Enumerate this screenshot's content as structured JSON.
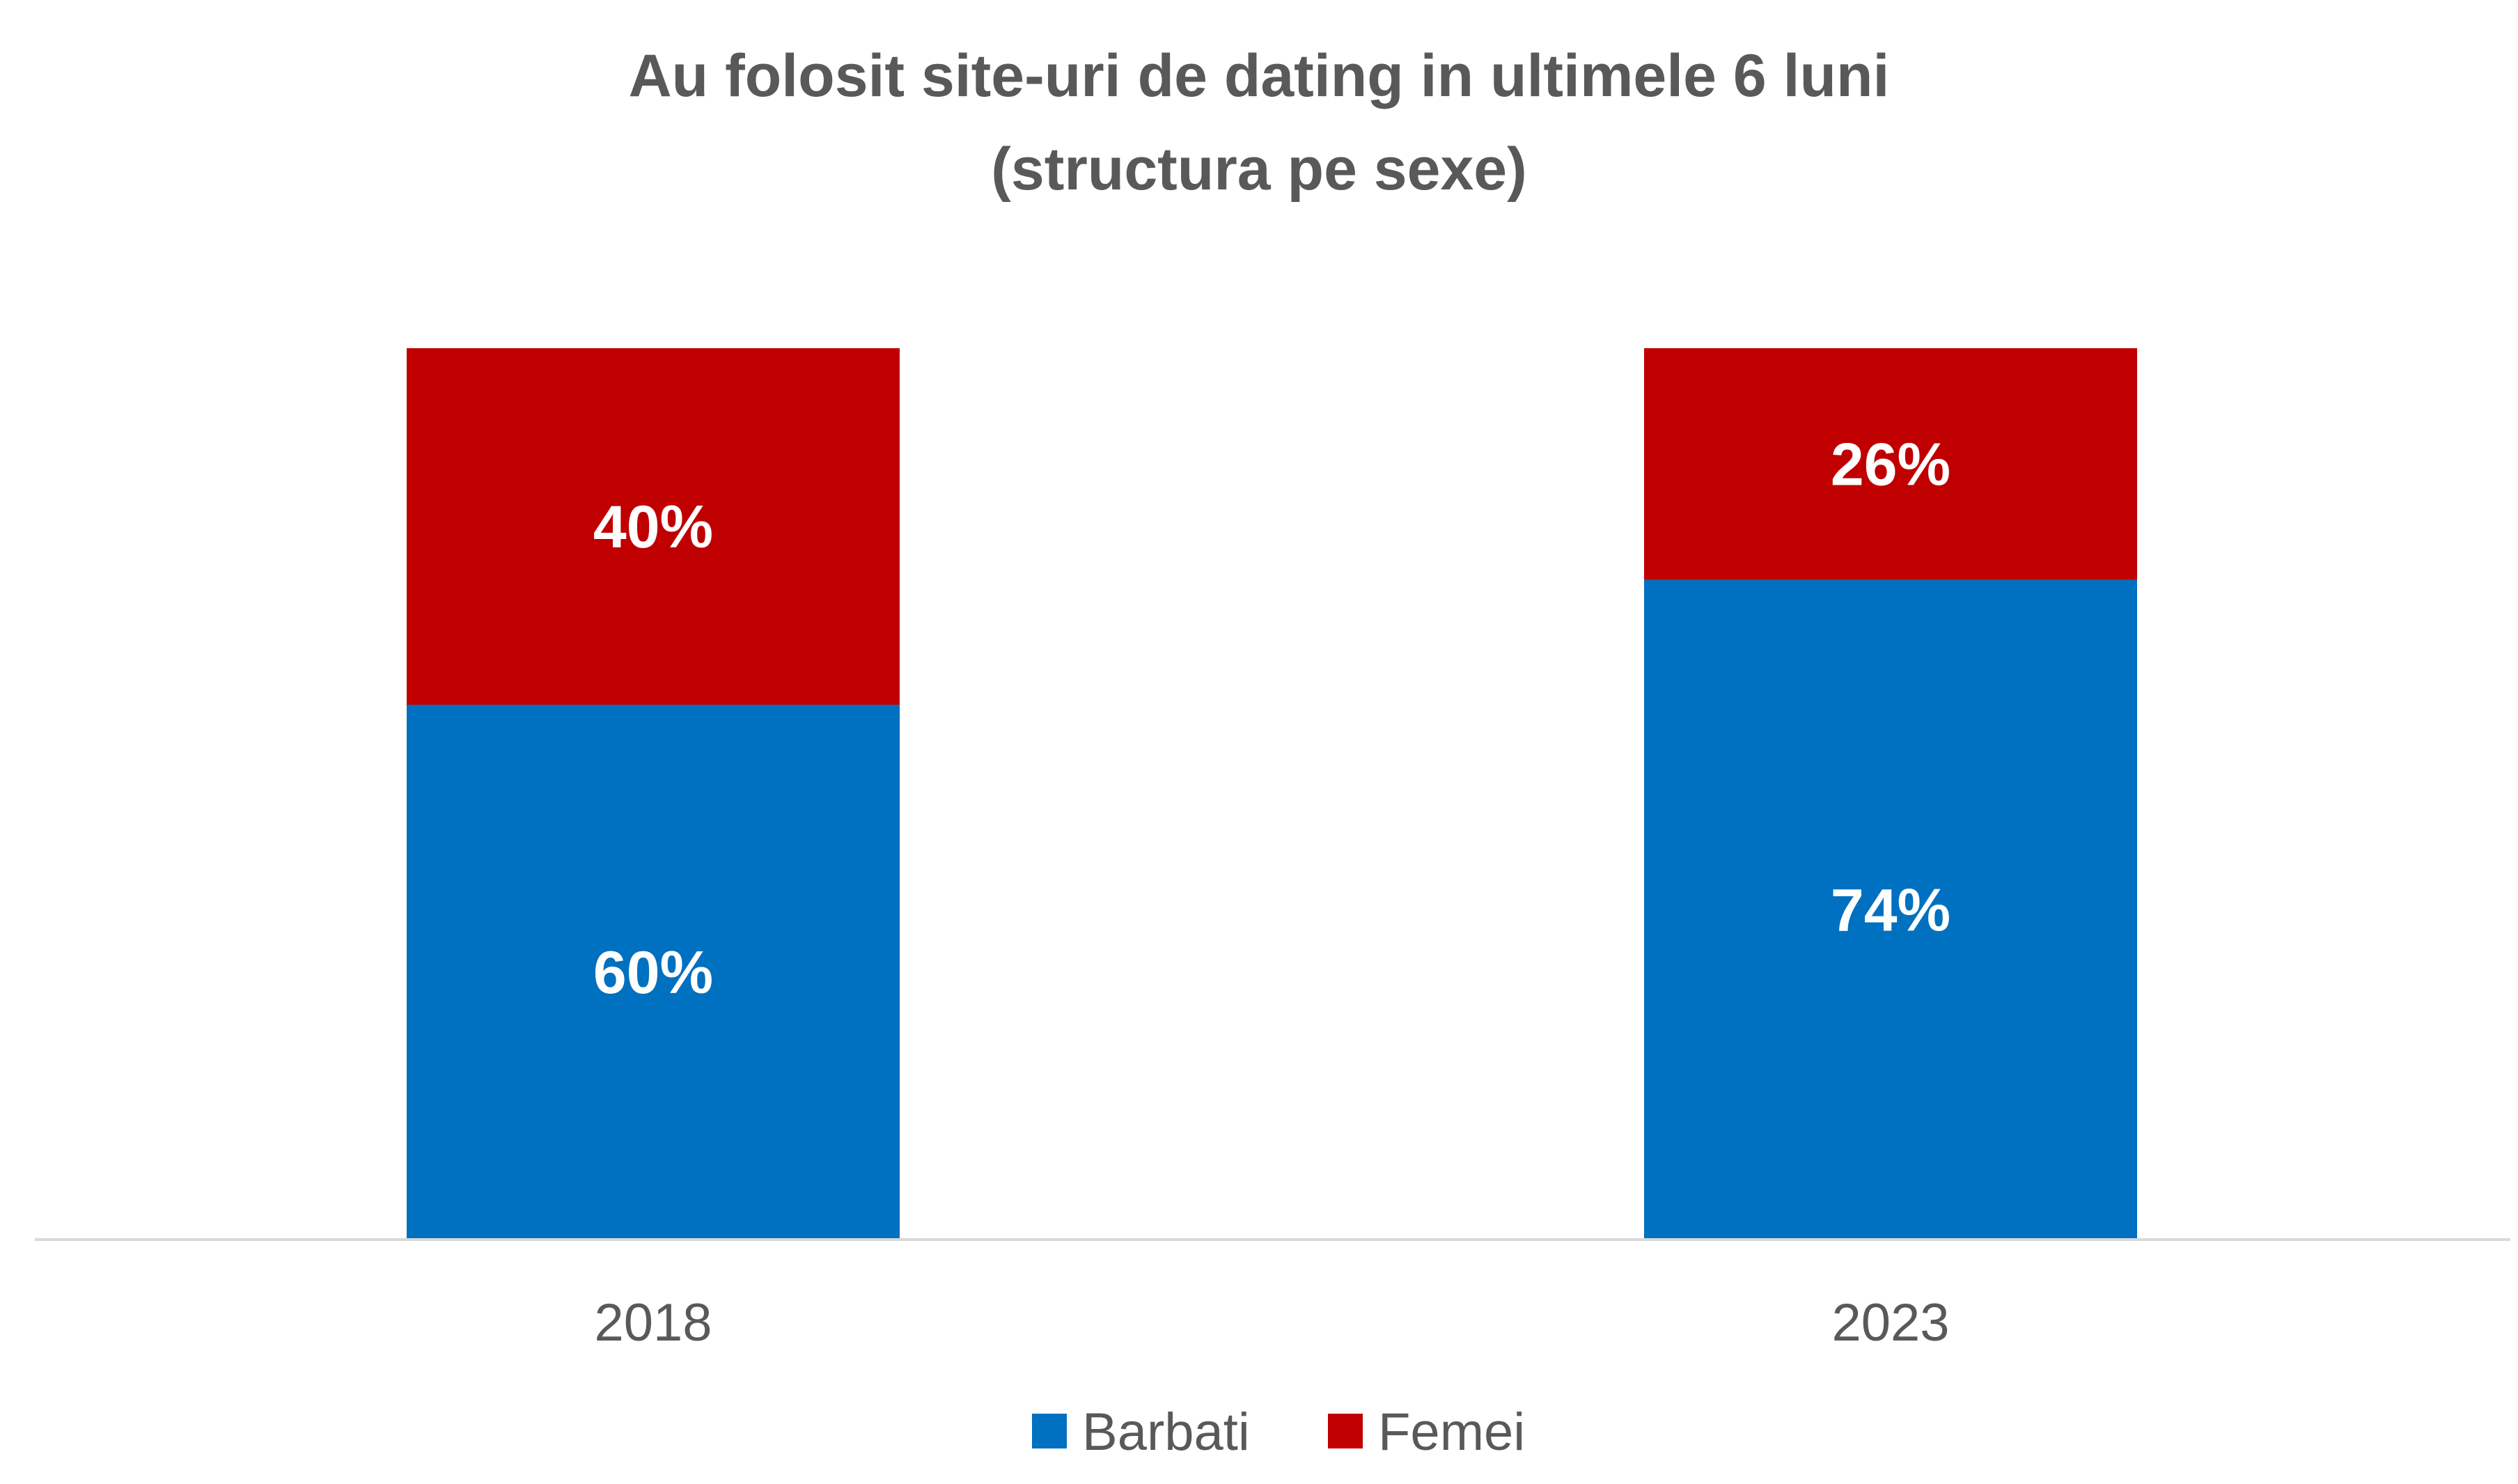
{
  "chart_data": {
    "type": "bar",
    "stacked": true,
    "title": "Au folosit site-uri de dating in ultimele 6 luni",
    "subtitle": "(structura pe sexe)",
    "categories": [
      "2018",
      "2023"
    ],
    "series": [
      {
        "name": "Barbati",
        "values": [
          60,
          74
        ],
        "labels": [
          "60%",
          "74%"
        ],
        "color": "#0070C0"
      },
      {
        "name": "Femei",
        "values": [
          40,
          26
        ],
        "labels": [
          "40%",
          "26%"
        ],
        "color": "#C00000"
      }
    ],
    "ylim": [
      0,
      100
    ],
    "grid": false,
    "legend": "bottom-center"
  }
}
